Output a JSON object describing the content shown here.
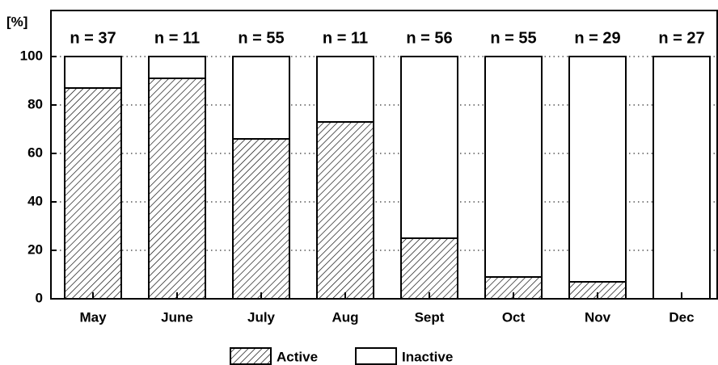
{
  "chart_data": {
    "type": "stacked_bar",
    "y_label": "[%]",
    "categories": [
      "May",
      "June",
      "July",
      "Aug",
      "Sept",
      "Oct",
      "Nov",
      "Dec"
    ],
    "series": [
      {
        "name": "Active",
        "color": "#000000",
        "hatch": true,
        "values": [
          87,
          91,
          66,
          73,
          25,
          9,
          7,
          0
        ]
      },
      {
        "name": "Inactive",
        "color": "#ffffff",
        "hatch": false,
        "values": [
          13,
          9,
          34,
          27,
          75,
          91,
          93,
          100
        ]
      }
    ],
    "annotations": [
      "n = 37",
      "n = 11",
      "n = 55",
      "n = 11",
      "n = 56",
      "n = 55",
      "n = 29",
      "n = 27"
    ],
    "ylim": [
      0,
      100
    ],
    "yticks": [
      0,
      20,
      40,
      60,
      80,
      100
    ],
    "grid": true
  }
}
